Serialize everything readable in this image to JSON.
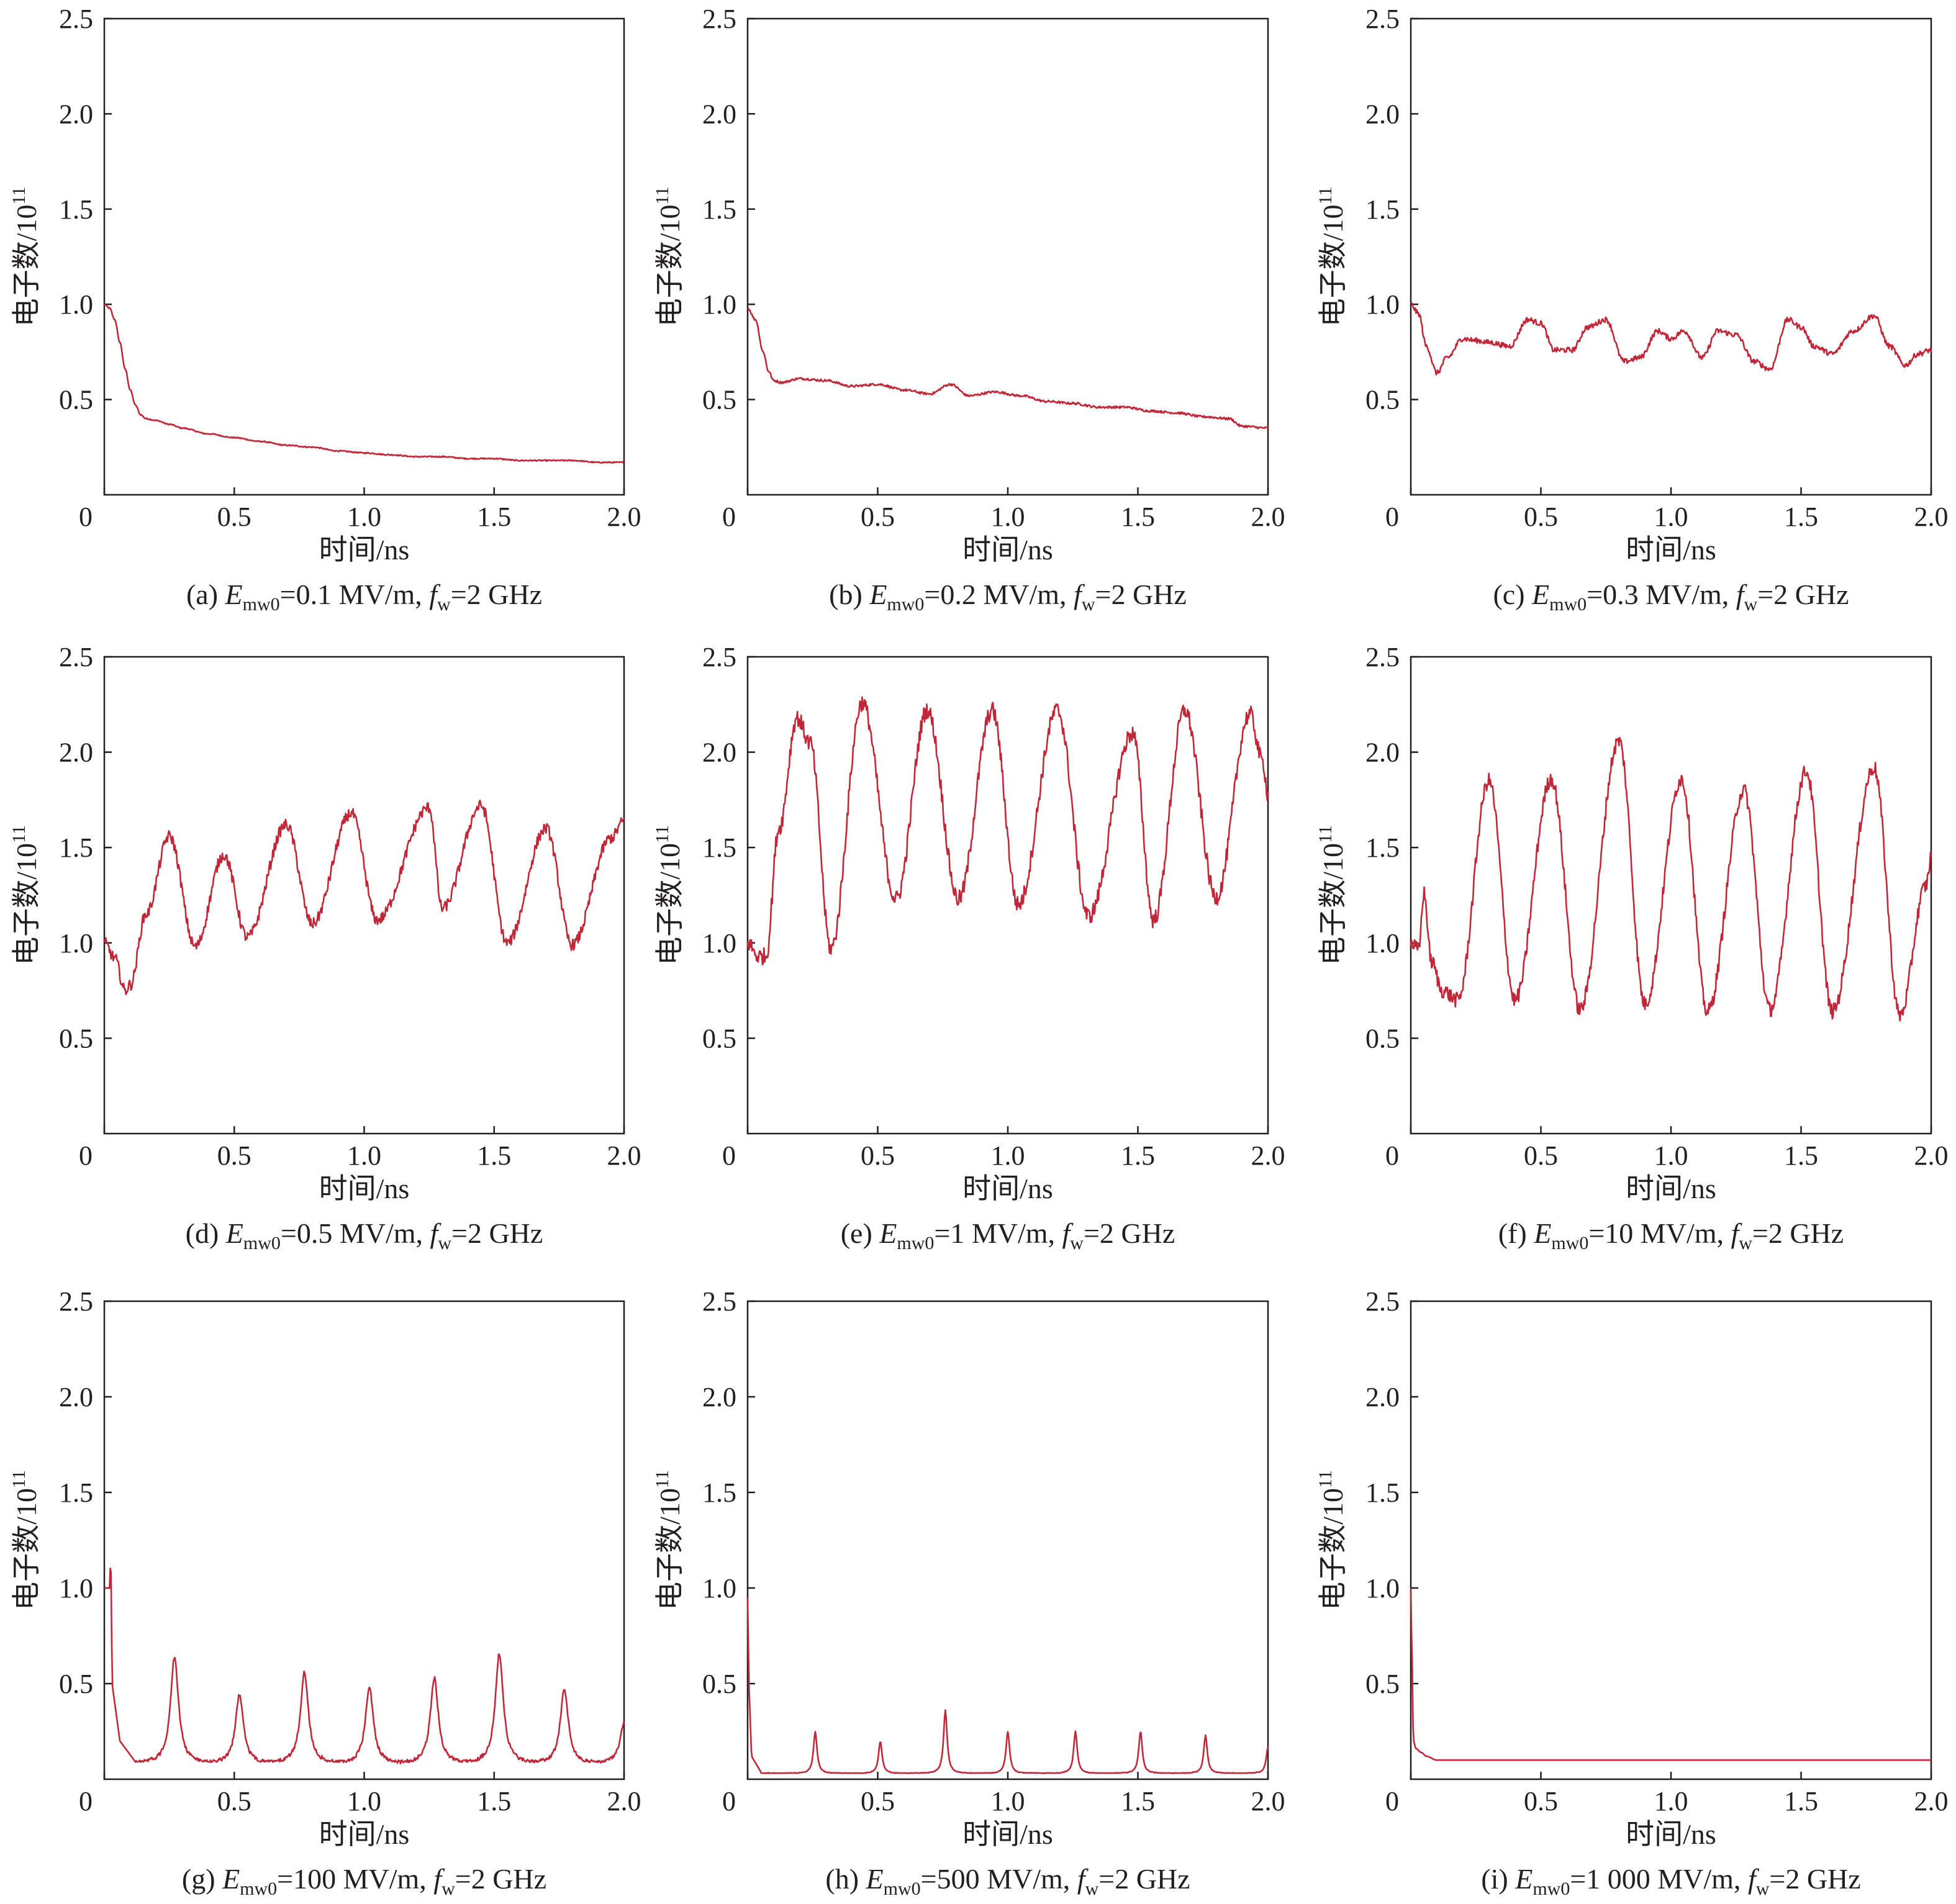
{
  "figure": {
    "line_color": "#c0283a",
    "panels_layout": "3x3 grid"
  },
  "chart_data": [
    {
      "type": "line",
      "caption": {
        "prefix": "(a) ",
        "E": "E",
        "sub": "mw0",
        "value": "=0.1 MV/m,  ",
        "f": "f",
        "fsub": "w",
        "fvalue": "=2 GHz"
      },
      "xlabel": "时间/ns",
      "ylabel": {
        "text": "电子数/10",
        "sup": "11"
      },
      "xlim": [
        0,
        2.0
      ],
      "ylim": [
        0,
        2.5
      ],
      "xticks": [
        "0",
        "0.5",
        "1.0",
        "1.5",
        "2.0"
      ],
      "yticks": [
        "0.5",
        "1.0",
        "1.5",
        "2.0",
        "2.5"
      ],
      "series": [
        {
          "x": [
            0,
            0.02,
            0.04,
            0.06,
            0.08,
            0.1,
            0.12,
            0.14,
            0.16,
            0.2,
            0.25,
            0.3,
            0.4,
            0.5,
            0.6,
            0.7,
            0.8,
            0.9,
            1.0,
            1.1,
            1.2,
            1.3,
            1.4,
            1.5,
            1.6,
            1.7,
            1.8,
            1.9,
            2.0
          ],
          "y": [
            1.0,
            0.98,
            0.92,
            0.8,
            0.66,
            0.55,
            0.47,
            0.42,
            0.4,
            0.39,
            0.37,
            0.35,
            0.32,
            0.3,
            0.28,
            0.26,
            0.25,
            0.23,
            0.22,
            0.21,
            0.2,
            0.2,
            0.19,
            0.19,
            0.18,
            0.18,
            0.18,
            0.17,
            0.17
          ],
          "noise": 0.003
        }
      ]
    },
    {
      "type": "line",
      "caption": {
        "prefix": "(b) ",
        "E": "E",
        "sub": "mw0",
        "value": "=0.2 MV/m,  ",
        "f": "f",
        "fsub": "w",
        "fvalue": "=2 GHz"
      },
      "xlabel": "时间/ns",
      "ylabel": {
        "text": "电子数/10",
        "sup": "11"
      },
      "xlim": [
        0,
        2.0
      ],
      "ylim": [
        0,
        2.5
      ],
      "xticks": [
        "0",
        "0.5",
        "1.0",
        "1.5",
        "2.0"
      ],
      "yticks": [
        "0.5",
        "1.0",
        "1.5",
        "2.0",
        "2.5"
      ],
      "series": [
        {
          "x": [
            0,
            0.03,
            0.06,
            0.08,
            0.1,
            0.13,
            0.2,
            0.3,
            0.4,
            0.5,
            0.6,
            0.7,
            0.78,
            0.85,
            0.95,
            1.05,
            1.15,
            1.25,
            1.35,
            1.45,
            1.55,
            1.65,
            1.75,
            1.85,
            1.9,
            2.0
          ],
          "y": [
            0.98,
            0.92,
            0.75,
            0.65,
            0.6,
            0.59,
            0.61,
            0.6,
            0.57,
            0.58,
            0.55,
            0.53,
            0.58,
            0.52,
            0.54,
            0.52,
            0.49,
            0.48,
            0.46,
            0.46,
            0.44,
            0.43,
            0.41,
            0.4,
            0.36,
            0.35
          ],
          "noise": 0.006
        }
      ]
    },
    {
      "type": "line",
      "caption": {
        "prefix": "(c) ",
        "E": "E",
        "sub": "mw0",
        "value": "=0.3 MV/m,  ",
        "f": "f",
        "fsub": "w",
        "fvalue": "=2 GHz"
      },
      "xlabel": "时间/ns",
      "ylabel": {
        "text": "电子数/10",
        "sup": "11"
      },
      "xlim": [
        0,
        2.0
      ],
      "ylim": [
        0,
        2.5
      ],
      "xticks": [
        "0",
        "0.5",
        "1.0",
        "1.5",
        "2.0"
      ],
      "yticks": [
        "0.5",
        "1.0",
        "1.5",
        "2.0",
        "2.5"
      ],
      "series": [
        {
          "x": [
            0,
            0.03,
            0.06,
            0.1,
            0.14,
            0.2,
            0.25,
            0.3,
            0.38,
            0.45,
            0.5,
            0.55,
            0.62,
            0.68,
            0.75,
            0.82,
            0.88,
            0.95,
            1.0,
            1.05,
            1.12,
            1.18,
            1.25,
            1.32,
            1.38,
            1.45,
            1.5,
            1.55,
            1.62,
            1.7,
            1.78,
            1.84,
            1.9,
            1.95,
            2.0
          ],
          "y": [
            1.0,
            0.95,
            0.78,
            0.64,
            0.72,
            0.82,
            0.81,
            0.8,
            0.78,
            0.92,
            0.9,
            0.76,
            0.76,
            0.88,
            0.92,
            0.7,
            0.72,
            0.86,
            0.82,
            0.86,
            0.72,
            0.86,
            0.84,
            0.7,
            0.66,
            0.92,
            0.88,
            0.78,
            0.74,
            0.86,
            0.94,
            0.78,
            0.68,
            0.74,
            0.76
          ],
          "noise": 0.014
        }
      ]
    },
    {
      "type": "line",
      "caption": {
        "prefix": "(d) ",
        "E": "E",
        "sub": "mw0",
        "value": "=0.5 MV/m,  ",
        "f": "f",
        "fsub": "w",
        "fvalue": "=2 GHz"
      },
      "xlabel": "时间/ns",
      "ylabel": {
        "text": "电子数/10",
        "sup": "11"
      },
      "xlim": [
        0,
        2.0
      ],
      "ylim": [
        0,
        2.5
      ],
      "xticks": [
        "0",
        "0.5",
        "1.0",
        "1.5",
        "2.0"
      ],
      "yticks": [
        "0.5",
        "1.0",
        "1.5",
        "2.0",
        "2.5"
      ],
      "series": [
        {
          "x": [
            0,
            0.04,
            0.08,
            0.1,
            0.16,
            0.25,
            0.35,
            0.46,
            0.55,
            0.7,
            0.8,
            0.95,
            1.05,
            1.25,
            1.3,
            1.45,
            1.55,
            1.7,
            1.8,
            1.95,
            2.0
          ],
          "y": [
            1.0,
            0.92,
            0.75,
            0.78,
            1.15,
            1.56,
            0.98,
            1.46,
            1.03,
            1.62,
            1.1,
            1.68,
            1.12,
            1.71,
            1.18,
            1.72,
            1.0,
            1.6,
            0.99,
            1.55,
            1.64
          ],
          "noise": 0.03
        }
      ]
    },
    {
      "type": "line",
      "caption": {
        "prefix": "(e) ",
        "E": "E",
        "sub": "mw0",
        "value": "=1 MV/m,  ",
        "f": "f",
        "fsub": "w",
        "fvalue": "=2 GHz"
      },
      "xlabel": "时间/ns",
      "ylabel": {
        "text": "电子数/10",
        "sup": "11"
      },
      "xlim": [
        0,
        2.0
      ],
      "ylim": [
        0,
        2.5
      ],
      "xticks": [
        "0",
        "0.5",
        "1.0",
        "1.5",
        "2.0"
      ],
      "yticks": [
        "0.5",
        "1.0",
        "1.5",
        "2.0",
        "2.5"
      ],
      "series": [
        {
          "x": [
            0,
            0.04,
            0.07,
            0.12,
            0.19,
            0.24,
            0.32,
            0.44,
            0.57,
            0.69,
            0.81,
            0.94,
            1.04,
            1.19,
            1.31,
            1.48,
            1.56,
            1.68,
            1.8,
            1.93,
            1.98,
            2.0
          ],
          "y": [
            1.0,
            0.93,
            0.93,
            1.6,
            2.18,
            2.05,
            0.97,
            2.26,
            1.23,
            2.22,
            1.23,
            2.22,
            1.2,
            2.22,
            1.14,
            2.1,
            1.12,
            2.22,
            1.24,
            2.2,
            1.95,
            1.78
          ],
          "noise": 0.045
        }
      ]
    },
    {
      "type": "line",
      "caption": {
        "prefix": "(f) ",
        "E": "E",
        "sub": "mw0",
        "value": "=10 MV/m,  ",
        "f": "f",
        "fsub": "w",
        "fvalue": "=2 GHz"
      },
      "xlabel": "时间/ns",
      "ylabel": {
        "text": "电子数/10",
        "sup": "11"
      },
      "xlim": [
        0,
        2.0
      ],
      "ylim": [
        0,
        2.5
      ],
      "xticks": [
        "0",
        "0.5",
        "1.0",
        "1.5",
        "2.0"
      ],
      "yticks": [
        "0.5",
        "1.0",
        "1.5",
        "2.0",
        "2.5"
      ],
      "series": [
        {
          "x": [
            0,
            0.03,
            0.05,
            0.08,
            0.12,
            0.18,
            0.3,
            0.4,
            0.54,
            0.65,
            0.8,
            0.9,
            1.04,
            1.14,
            1.28,
            1.38,
            1.52,
            1.62,
            1.78,
            1.88,
            1.98,
            2.0
          ],
          "y": [
            1.0,
            0.96,
            1.26,
            0.9,
            0.75,
            0.7,
            1.85,
            0.7,
            1.86,
            0.65,
            2.06,
            0.68,
            1.86,
            0.64,
            1.8,
            0.65,
            1.9,
            0.64,
            1.92,
            0.62,
            1.3,
            1.45
          ],
          "noise": 0.04
        }
      ]
    },
    {
      "type": "line",
      "caption": {
        "prefix": "(g) ",
        "E": "E",
        "sub": "mw0",
        "value": "=100 MV/m,  ",
        "f": "f",
        "fsub": "w",
        "fvalue": "=2 GHz"
      },
      "xlabel": "时间/ns",
      "ylabel": {
        "text": "电子数/10",
        "sup": "11"
      },
      "xlim": [
        0,
        2.0
      ],
      "ylim": [
        0,
        2.5
      ],
      "xticks": [
        "0",
        "0.5",
        "1.0",
        "1.5",
        "2.0"
      ],
      "yticks": [
        "0.5",
        "1.0",
        "1.5",
        "2.0",
        "2.5"
      ],
      "series": [
        {
          "spiky": true,
          "base": 0.08,
          "start": [
            [
              0.02,
              1.0
            ],
            [
              0.025,
              1.18
            ],
            [
              0.03,
              0.5
            ],
            [
              0.06,
              0.2
            ],
            [
              0.12,
              0.09
            ]
          ],
          "peaks": [
            [
              0.27,
              0.64
            ],
            [
              0.52,
              0.44
            ],
            [
              0.77,
              0.56
            ],
            [
              1.02,
              0.48
            ],
            [
              1.27,
              0.53
            ],
            [
              1.52,
              0.66
            ],
            [
              1.77,
              0.47
            ],
            [
              2.0,
              0.3
            ]
          ],
          "width": 0.045,
          "noise": 0.02
        }
      ]
    },
    {
      "type": "line",
      "caption": {
        "prefix": "(h) ",
        "E": "E",
        "sub": "mw0",
        "value": "=500 MV/m,  ",
        "f": "f",
        "fsub": "w",
        "fvalue": "=2 GHz"
      },
      "xlabel": "时间/ns",
      "ylabel": {
        "text": "电子数/10",
        "sup": "11"
      },
      "xlim": [
        0,
        2.0
      ],
      "ylim": [
        0,
        2.5
      ],
      "xticks": [
        "0",
        "0.5",
        "1.0",
        "1.5",
        "2.0"
      ],
      "yticks": [
        "0.5",
        "1.0",
        "1.5",
        "2.0",
        "2.5"
      ],
      "series": [
        {
          "spiky": true,
          "base": 0.03,
          "start": [
            [
              0.0,
              0.95
            ],
            [
              0.005,
              0.5
            ],
            [
              0.015,
              0.12
            ],
            [
              0.05,
              0.04
            ]
          ],
          "peaks": [
            [
              0.26,
              0.25
            ],
            [
              0.51,
              0.2
            ],
            [
              0.76,
              0.36
            ],
            [
              1.0,
              0.25
            ],
            [
              1.26,
              0.25
            ],
            [
              1.51,
              0.25
            ],
            [
              1.76,
              0.23
            ],
            [
              2.0,
              0.17
            ]
          ],
          "width": 0.02,
          "noise": 0.004
        }
      ]
    },
    {
      "type": "line",
      "caption": {
        "prefix": "(i) ",
        "E": "E",
        "sub": "mw0",
        "value": "=1 000 MV/m,  ",
        "f": "f",
        "fsub": "w",
        "fvalue": "=2 GHz"
      },
      "xlabel": "时间/ns",
      "ylabel": {
        "text": "电子数/10",
        "sup": "11"
      },
      "xlim": [
        0,
        2.0
      ],
      "ylim": [
        0,
        2.5
      ],
      "xticks": [
        "0",
        "0.5",
        "1.0",
        "1.5",
        "2.0"
      ],
      "yticks": [
        "0.5",
        "1.0",
        "1.5",
        "2.0",
        "2.5"
      ],
      "series": [
        {
          "x": [
            0,
            0.005,
            0.01,
            0.02,
            0.04,
            0.06,
            0.1,
            0.5,
            1.0,
            1.5,
            2.0
          ],
          "y": [
            1.0,
            0.6,
            0.2,
            0.16,
            0.14,
            0.12,
            0.1,
            0.1,
            0.1,
            0.1,
            0.1
          ],
          "noise": 0.0
        }
      ]
    }
  ]
}
